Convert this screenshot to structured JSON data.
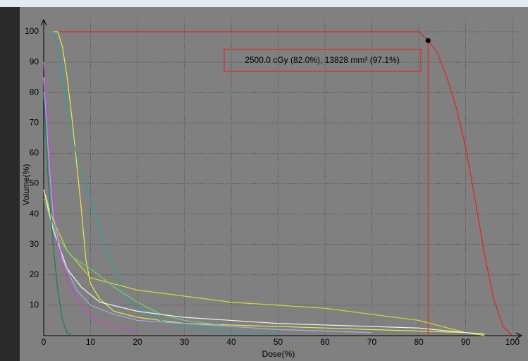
{
  "chart_data": {
    "type": "line",
    "xlabel": "Dose(%)",
    "ylabel": "Volume(%)",
    "annotation": "2500.0 cGy (82.0%), 13828 mm³ (97.1%)",
    "marker": {
      "x": 82,
      "y": 97.1,
      "color": "#000000"
    },
    "crosshair_color": "#e02020",
    "xlim": [
      0,
      100
    ],
    "ylim": [
      0,
      100
    ],
    "xticks": [
      0,
      10,
      20,
      30,
      40,
      50,
      60,
      70,
      80,
      90,
      100
    ],
    "yticks": [
      10,
      20,
      30,
      40,
      50,
      60,
      70,
      80,
      90,
      100
    ],
    "grid": true,
    "series": [
      {
        "color": "#e02020",
        "x": [
          0,
          80,
          82,
          84,
          86,
          88,
          90,
          92,
          94,
          96,
          98,
          100
        ],
        "values": [
          100,
          100,
          97.1,
          93,
          85,
          75,
          62,
          45,
          27,
          12,
          3,
          0
        ]
      },
      {
        "color": "#e8e840",
        "x": [
          0,
          3,
          4,
          5,
          6,
          7,
          8,
          9,
          10,
          12,
          15,
          20,
          30,
          50,
          70,
          90,
          94
        ],
        "values": [
          100,
          100,
          95,
          85,
          72,
          57,
          42,
          25,
          17,
          12,
          8,
          6,
          4,
          3,
          2,
          1,
          0.5
        ]
      },
      {
        "color": "#2aa0a0",
        "x": [
          0,
          2,
          3,
          4,
          5,
          6,
          8,
          10,
          12,
          14,
          16,
          18,
          20,
          25,
          30,
          40,
          50
        ],
        "values": [
          100,
          100,
          95,
          85,
          75,
          65,
          55,
          45,
          35,
          25,
          18,
          12,
          9,
          5,
          3,
          1,
          0.5
        ]
      },
      {
        "color": "#d8d830",
        "x": [
          0,
          2,
          5,
          10,
          20,
          30,
          40,
          50,
          60,
          70,
          80,
          85,
          90,
          94
        ],
        "values": [
          48,
          38,
          28,
          19,
          15,
          13,
          11,
          10,
          9,
          7,
          5,
          3,
          1,
          0
        ]
      },
      {
        "color": "#70d070",
        "x": [
          0,
          3,
          6,
          10,
          15,
          20,
          25,
          30,
          40,
          50,
          60,
          70
        ],
        "values": [
          45,
          32,
          26,
          22,
          16,
          11,
          7,
          5,
          3,
          2,
          1.5,
          1
        ]
      },
      {
        "color": "#f4f4f4",
        "x": [
          0,
          2,
          5,
          8,
          12,
          20,
          30,
          40,
          50,
          60,
          70,
          80,
          90,
          94
        ],
        "values": [
          48,
          35,
          22,
          16,
          11,
          8,
          6,
          5,
          4,
          3.5,
          3,
          2.5,
          1,
          0.5
        ]
      },
      {
        "color": "#d040d0",
        "x": [
          0,
          1,
          2,
          3,
          5,
          8,
          10,
          15,
          20
        ],
        "values": [
          90,
          70,
          45,
          30,
          18,
          10,
          6,
          3,
          1
        ]
      },
      {
        "color": "#a0a8f0",
        "x": [
          0,
          1,
          2,
          4,
          7,
          10,
          15,
          20,
          30,
          40,
          50,
          60,
          70
        ],
        "values": [
          85,
          60,
          40,
          25,
          15,
          10,
          7,
          5,
          4,
          3,
          2,
          1.5,
          1
        ]
      },
      {
        "color": "#108050",
        "x": [
          0,
          1,
          2,
          3,
          4,
          5,
          6
        ],
        "values": [
          80,
          50,
          30,
          15,
          5,
          1,
          0
        ]
      }
    ]
  }
}
